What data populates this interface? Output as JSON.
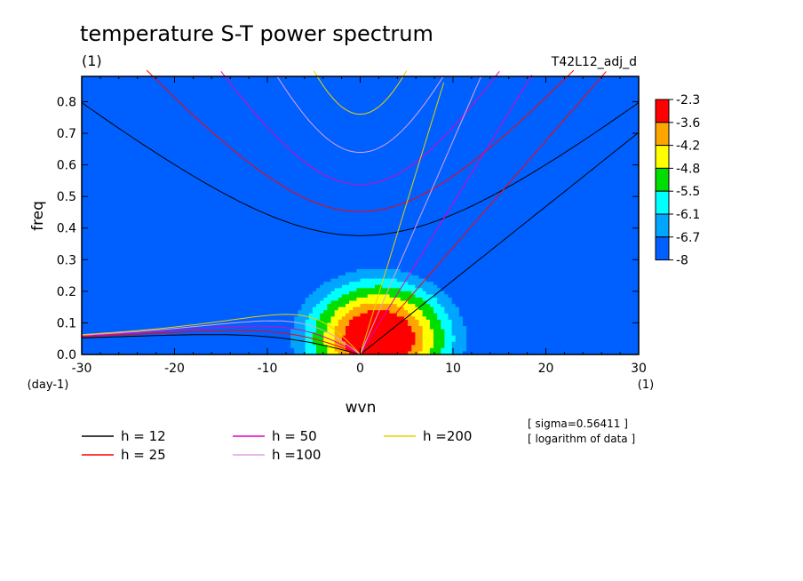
{
  "chart_data": {
    "type": "heatmap",
    "title": "temperature S-T power spectrum",
    "subtitle": "(1)",
    "run_label": "T42L12_adj_d",
    "xlabel": "wvn",
    "ylabel": "freq",
    "x_unit": "(1)",
    "y_unit": "(day-1)",
    "xlim": [
      -30,
      30
    ],
    "ylim": [
      0,
      0.88
    ],
    "x_ticks": [
      -30,
      -20,
      -10,
      0,
      10,
      20,
      30
    ],
    "x_tick_labels": [
      "-30",
      "-20",
      "-10",
      "0",
      "10",
      "20",
      "30"
    ],
    "y_ticks": [
      0.0,
      0.1,
      0.2,
      0.3,
      0.4,
      0.5,
      0.6,
      0.7,
      0.8
    ],
    "y_tick_labels": [
      "0.0",
      "0.1",
      "0.2",
      "0.3",
      "0.4",
      "0.5",
      "0.6",
      "0.7",
      "0.8"
    ],
    "colorbar": {
      "labels": [
        "-2.3",
        "-3.6",
        "-4.2",
        "-4.8",
        "-5.5",
        "-6.1",
        "-6.7",
        "-8"
      ],
      "colors": [
        "#ff0000",
        "#ffa500",
        "#ffff00",
        "#00dd00",
        "#00ffff",
        "#00a5ff",
        "#0060ff"
      ]
    },
    "annotations": [
      "[ sigma=0.56411 ]",
      "[ logarithm of data ]"
    ],
    "peak": {
      "wavenumber": 2,
      "frequency": 0.05
    },
    "dispersion_curves": [
      {
        "name": "h = 12",
        "h": 12,
        "color": "#000000"
      },
      {
        "name": "h = 25",
        "h": 25,
        "color": "#ff0000"
      },
      {
        "name": "h = 50",
        "h": 50,
        "color": "#e000c0"
      },
      {
        "name": "h =100",
        "h": 100,
        "color": "#e0a0e0"
      },
      {
        "name": "h =200",
        "h": 200,
        "color": "#e8d000"
      }
    ]
  }
}
